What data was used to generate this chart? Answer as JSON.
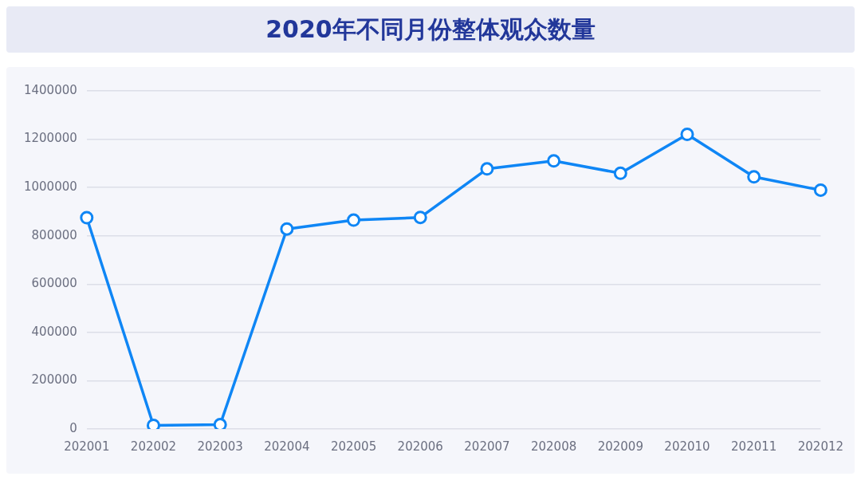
{
  "chart_data": {
    "type": "line",
    "title": "2020年不同月份整体观众数量",
    "categories": [
      "202001",
      "202002",
      "202003",
      "202004",
      "202005",
      "202006",
      "202007",
      "202008",
      "202009",
      "202010",
      "202011",
      "202012"
    ],
    "series": [
      {
        "color": "#0f86f5",
        "values": [
          875000,
          15000,
          18000,
          828000,
          865000,
          876000,
          1077000,
          1110000,
          1059000,
          1220000,
          1044000,
          989000
        ]
      }
    ],
    "ylim": [
      0,
      1400000
    ],
    "yticks": [
      0,
      200000,
      400000,
      600000,
      800000,
      1000000,
      1200000,
      1400000
    ],
    "grid": "y",
    "legend": false,
    "marker": "circle",
    "line_style": "solid"
  }
}
